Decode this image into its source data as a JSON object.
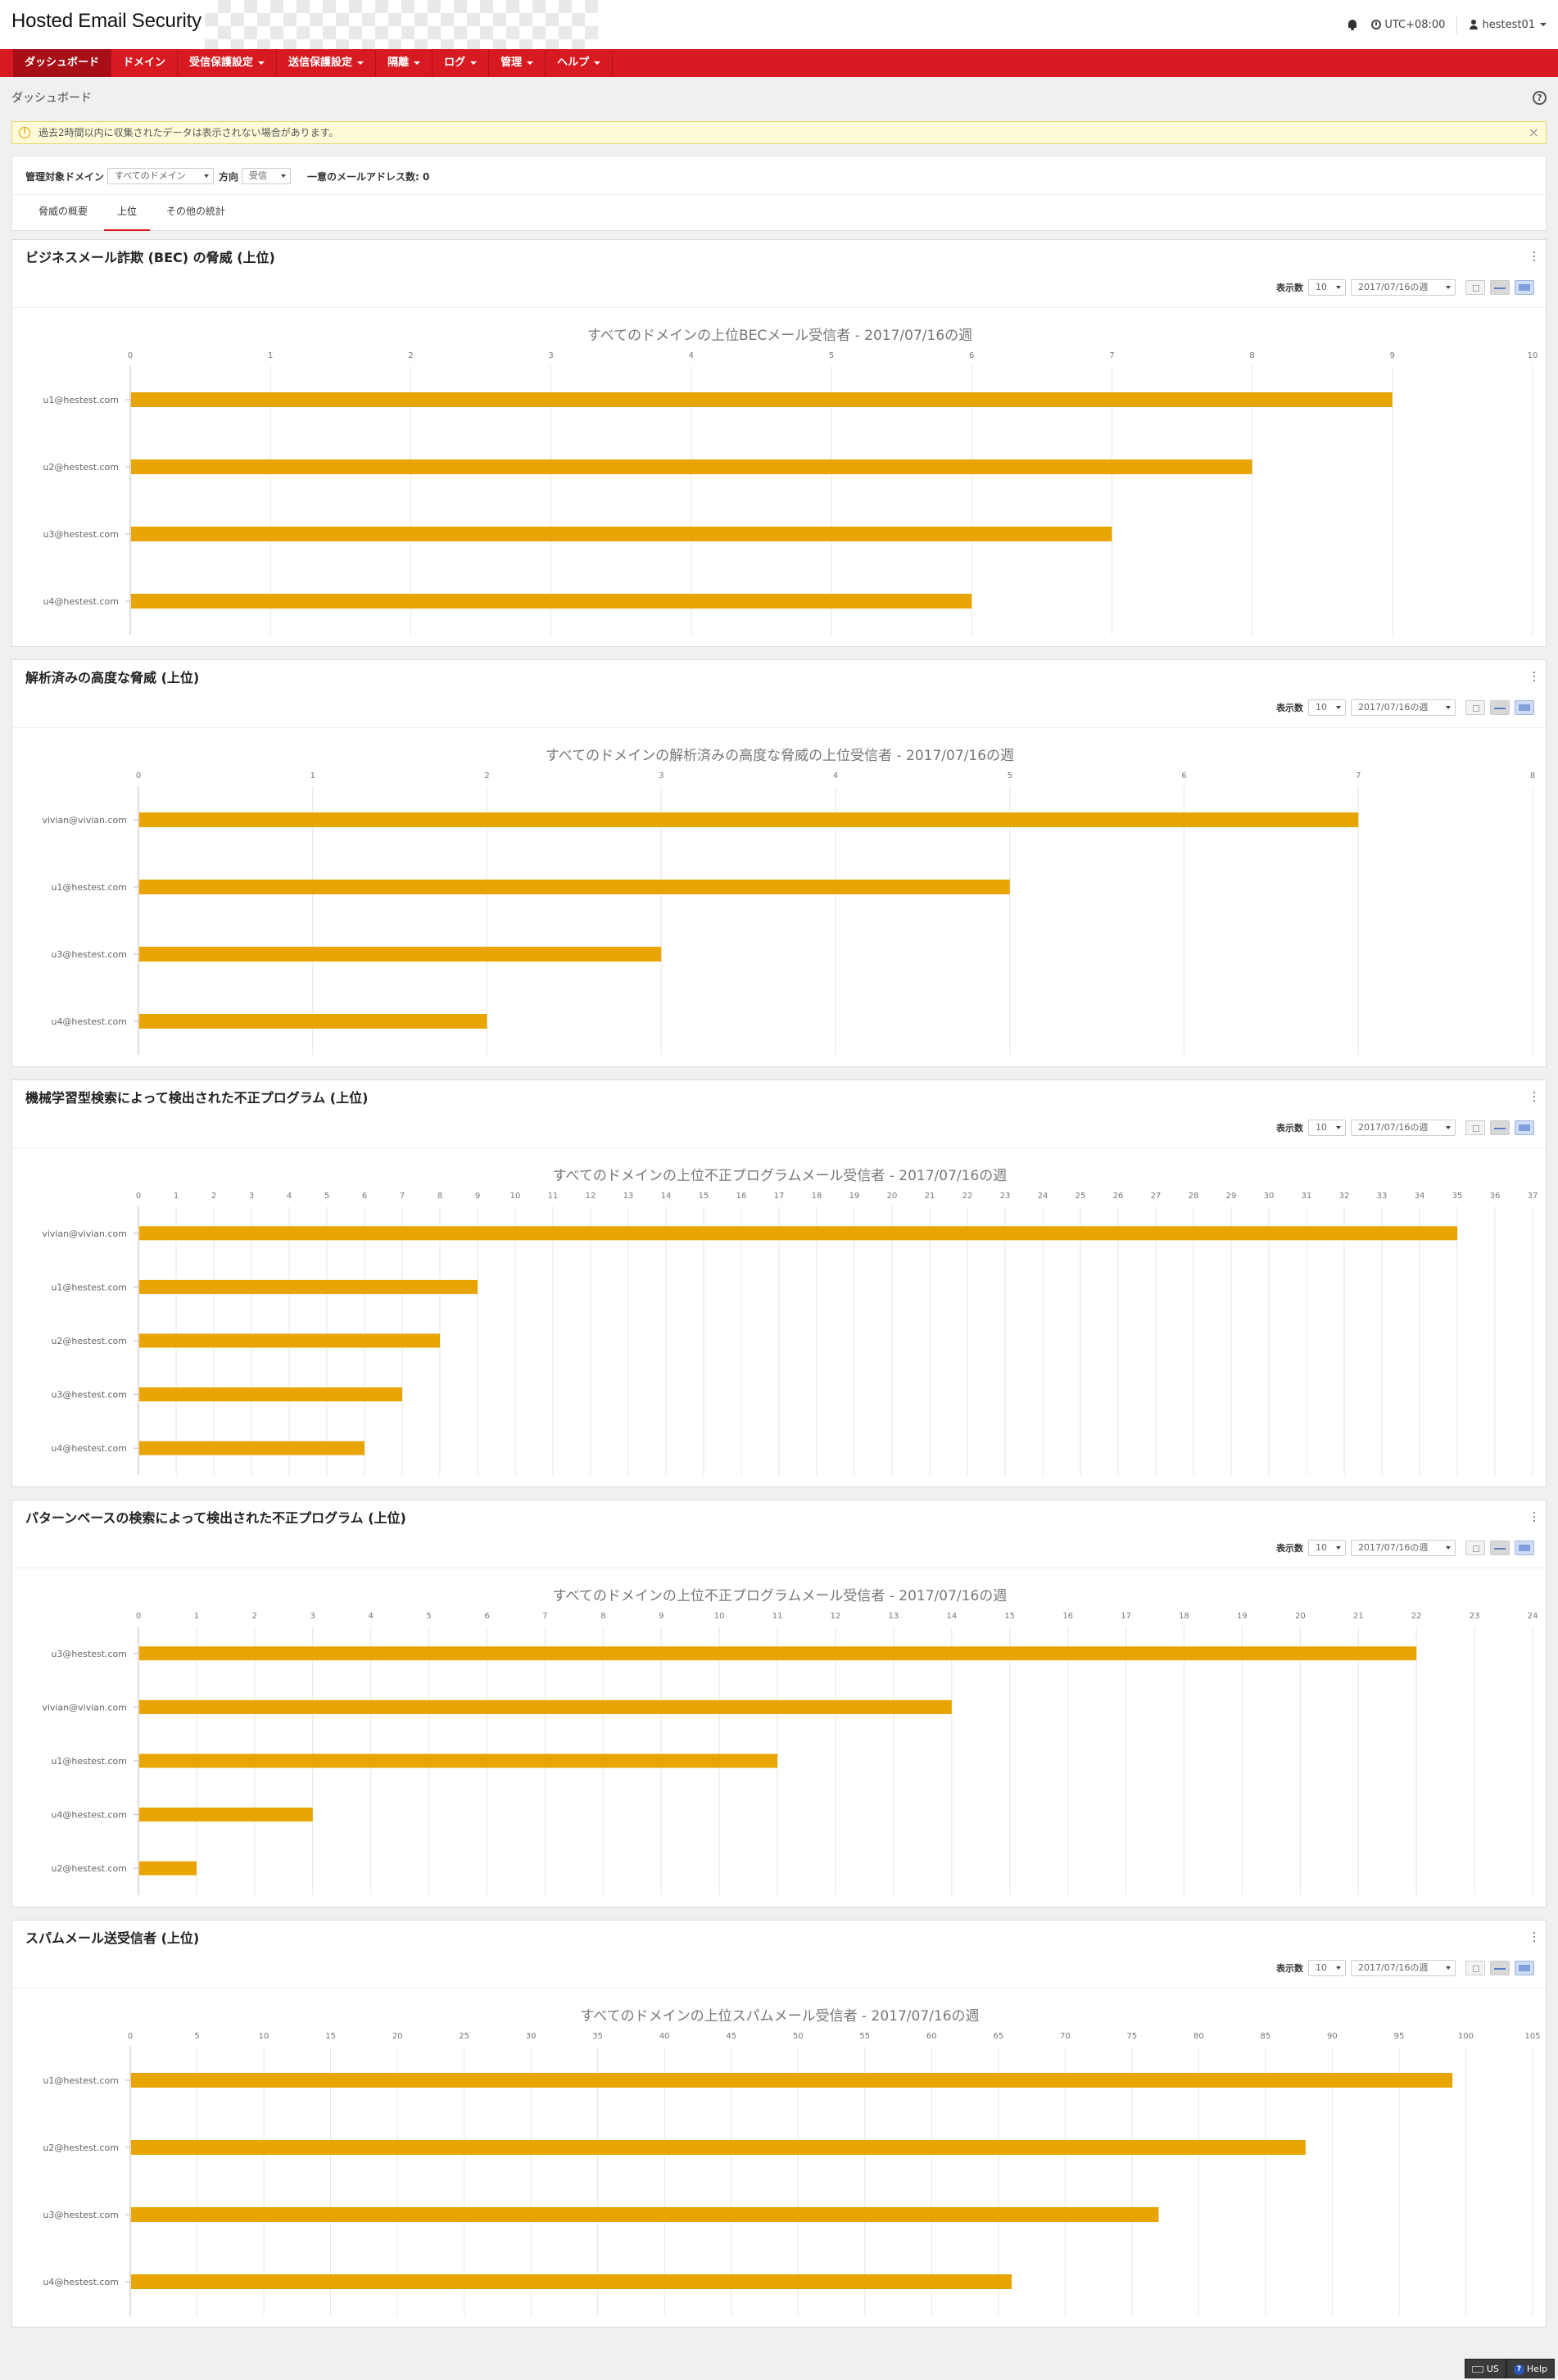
{
  "header": {
    "app_title": "Hosted Email Security",
    "timezone": "UTC+08:00",
    "user": "hestest01"
  },
  "nav": {
    "items": [
      {
        "label": "ダッシュボード",
        "dropdown": false,
        "active": true
      },
      {
        "label": "ドメイン",
        "dropdown": false,
        "active": false
      },
      {
        "label": "受信保護設定",
        "dropdown": true,
        "active": false
      },
      {
        "label": "送信保護設定",
        "dropdown": true,
        "active": false
      },
      {
        "label": "隔離",
        "dropdown": true,
        "active": false
      },
      {
        "label": "ログ",
        "dropdown": true,
        "active": false
      },
      {
        "label": "管理",
        "dropdown": true,
        "active": false
      },
      {
        "label": "ヘルプ",
        "dropdown": true,
        "active": false
      }
    ]
  },
  "page": {
    "title": "ダッシュボード",
    "alert": "過去2時間以内に収集されたデータは表示されない場合があります。"
  },
  "filter": {
    "domain_label": "管理対象ドメイン",
    "domain_value": "すべてのドメイン",
    "direction_label": "方向",
    "direction_value": "受信",
    "unique_label": "一意のメールアドレス数: 0"
  },
  "tabs": [
    {
      "label": "脅威の概要",
      "active": false
    },
    {
      "label": "上位",
      "active": true
    },
    {
      "label": "その他の統計",
      "active": false
    }
  ],
  "panel_common": {
    "count_label": "表示数",
    "count_value": "10",
    "week_value": "2017/07/16の週"
  },
  "panels": [
    {
      "title": "ビジネスメール詐欺 (BEC) の脅威 (上位)"
    },
    {
      "title": "解析済みの高度な脅威 (上位)"
    },
    {
      "title": "機械学習型検索によって検出された不正プログラム (上位)"
    },
    {
      "title": "パターンベースの検索によって検出された不正プログラム (上位)"
    },
    {
      "title": "スパムメール送受信者 (上位)"
    }
  ],
  "chart_data": [
    {
      "type": "bar",
      "orientation": "horizontal",
      "title": "すべてのドメインの上位BECメール受信者 - 2017/07/16の週",
      "categories": [
        "u1@hestest.com",
        "u2@hestest.com",
        "u3@hestest.com",
        "u4@hestest.com"
      ],
      "values": [
        9,
        8,
        7,
        6
      ],
      "xlim": [
        0,
        10
      ],
      "xticks": [
        0,
        1,
        2,
        3,
        4,
        5,
        6,
        7,
        8,
        9,
        10
      ],
      "grid": true,
      "color": "#e8a400"
    },
    {
      "type": "bar",
      "orientation": "horizontal",
      "title": "すべてのドメインの解析済みの高度な脅威の上位受信者 - 2017/07/16の週",
      "categories": [
        "vivian@vivian.com",
        "u1@hestest.com",
        "u3@hestest.com",
        "u4@hestest.com"
      ],
      "values": [
        7,
        5,
        3,
        2
      ],
      "xlim": [
        0,
        8
      ],
      "xticks": [
        0,
        1,
        2,
        3,
        4,
        5,
        6,
        7,
        8
      ],
      "grid": true,
      "color": "#e8a400"
    },
    {
      "type": "bar",
      "orientation": "horizontal",
      "title": "すべてのドメインの上位不正プログラムメール受信者 - 2017/07/16の週",
      "categories": [
        "vivian@vivian.com",
        "u1@hestest.com",
        "u2@hestest.com",
        "u3@hestest.com",
        "u4@hestest.com"
      ],
      "values": [
        35,
        9,
        8,
        7,
        6
      ],
      "xlim": [
        0,
        37
      ],
      "xticks": [
        0,
        1,
        2,
        3,
        4,
        5,
        6,
        7,
        8,
        9,
        10,
        11,
        12,
        13,
        14,
        15,
        16,
        17,
        18,
        19,
        20,
        21,
        22,
        23,
        24,
        25,
        26,
        27,
        28,
        29,
        30,
        31,
        32,
        33,
        34,
        35,
        36,
        37
      ],
      "grid": true,
      "color": "#e8a400"
    },
    {
      "type": "bar",
      "orientation": "horizontal",
      "title": "すべてのドメインの上位不正プログラムメール受信者 - 2017/07/16の週",
      "categories": [
        "u3@hestest.com",
        "vivian@vivian.com",
        "u1@hestest.com",
        "u4@hestest.com",
        "u2@hestest.com"
      ],
      "values": [
        22,
        14,
        11,
        3,
        1
      ],
      "xlim": [
        0,
        24
      ],
      "xticks": [
        0,
        1,
        2,
        3,
        4,
        5,
        6,
        7,
        8,
        9,
        10,
        11,
        12,
        13,
        14,
        15,
        16,
        17,
        18,
        19,
        20,
        21,
        22,
        23,
        24
      ],
      "grid": true,
      "color": "#e8a400"
    },
    {
      "type": "bar",
      "orientation": "horizontal",
      "title": "すべてのドメインの上位スパムメール受信者 - 2017/07/16の週",
      "categories": [
        "u1@hestest.com",
        "u2@hestest.com",
        "u3@hestest.com",
        "u4@hestest.com"
      ],
      "values": [
        99,
        88,
        77,
        66
      ],
      "xlim": [
        0,
        105
      ],
      "xticks": [
        0,
        5,
        10,
        15,
        20,
        25,
        30,
        35,
        40,
        45,
        50,
        55,
        60,
        65,
        70,
        75,
        80,
        85,
        90,
        95,
        100,
        105
      ],
      "grid": true,
      "color": "#e8a400"
    }
  ],
  "footer": {
    "lang": "US",
    "help": "Help"
  }
}
